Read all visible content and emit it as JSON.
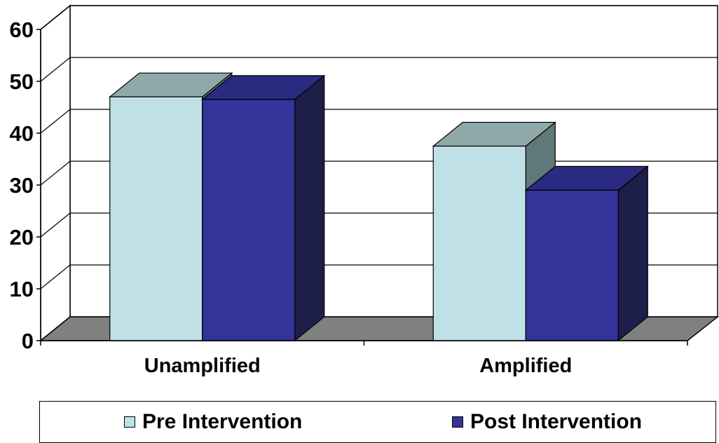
{
  "chart_data": {
    "type": "bar",
    "categories": [
      "Unamplified",
      "Amplified"
    ],
    "series": [
      {
        "name": "Pre Intervention",
        "values": [
          47,
          37.5
        ]
      },
      {
        "name": "Post Intervention",
        "values": [
          46.5,
          29
        ]
      }
    ],
    "ylim": [
      0,
      60
    ],
    "yticks": [
      0,
      10,
      20,
      30,
      40,
      50,
      60
    ],
    "title": "",
    "xlabel": "",
    "ylabel": "",
    "grid": true,
    "legend_position": "bottom",
    "style": "3d-clustered-column",
    "colors": {
      "Pre Intervention": {
        "front": "#bfe0e6",
        "top": "#8fa8a8",
        "side": "#607878"
      },
      "Post Intervention": {
        "front": "#333399",
        "top": "#2a2a80",
        "side": "#1e1e4a"
      },
      "floor": "#808080"
    }
  }
}
